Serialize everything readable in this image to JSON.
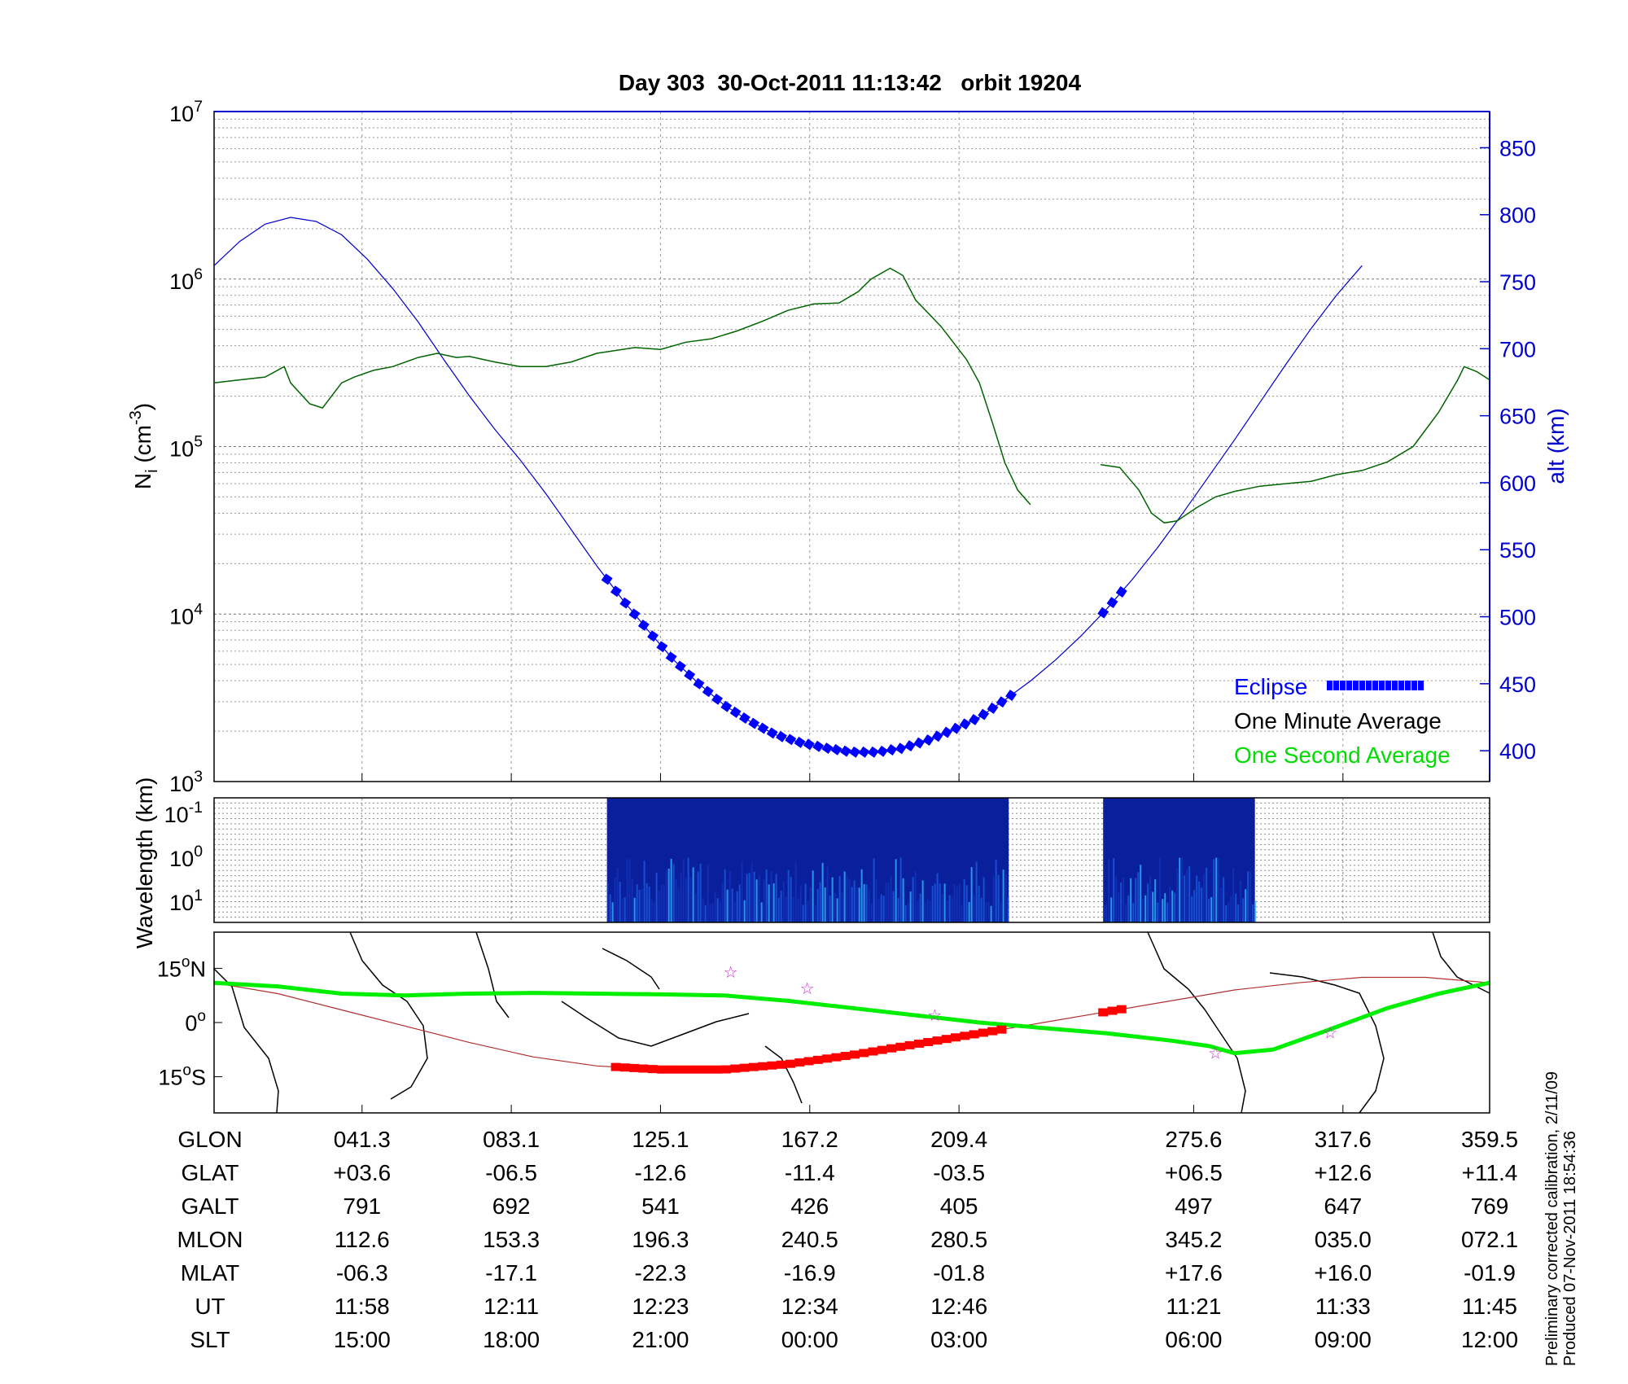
{
  "title": "Day 303  30-Oct-2011 11:13:42   orbit 19204",
  "notes": [
    "Preliminary corrected calibration, 2/11/09",
    "Produced 07-Nov-2011 18:54:36"
  ],
  "colors": {
    "altitude": "#0000cc",
    "density": "#006400",
    "eclipse": "#0000ff",
    "track": "#00ee00",
    "orbit": "#b03030",
    "eclipse_track": "#ff0000",
    "star": "#cc33cc",
    "spectrogram": "#0a1f9c"
  },
  "chart_data": [
    {
      "type": "line",
      "panel": "density",
      "ylabel": "N_i (cm^-3)",
      "ylabel_parts": {
        "base": "N",
        "sub": "i",
        "unit": " (cm",
        "sup": "-3",
        "close": ")"
      },
      "yscale": "log",
      "ylim": [
        1000,
        10000000
      ],
      "yticks": [
        {
          "base": "10",
          "exp": "3"
        },
        {
          "base": "10",
          "exp": "4"
        },
        {
          "base": "10",
          "exp": "5"
        },
        {
          "base": "10",
          "exp": "6"
        },
        {
          "base": "10",
          "exp": "7"
        }
      ],
      "y2label": "alt (km)",
      "y2lim": [
        377,
        877
      ],
      "y2ticks": [
        "400",
        "450",
        "500",
        "550",
        "600",
        "650",
        "700",
        "750",
        "800",
        "850"
      ],
      "xlim": [
        0,
        100
      ],
      "grid": true,
      "legend_position": "bottom-right",
      "legend": [
        "Eclipse",
        "One Minute Average",
        "One Second Average"
      ],
      "series": [
        {
          "name": "One Minute Average",
          "role": "density",
          "color": "#006400",
          "segments": [
            [
              [
                0,
                240000
              ],
              [
                2,
                250000
              ],
              [
                4,
                260000
              ],
              [
                5.5,
                300000
              ],
              [
                6,
                240000
              ],
              [
                7.5,
                180000
              ],
              [
                8.5,
                170000
              ],
              [
                10,
                240000
              ],
              [
                11,
                260000
              ],
              [
                12.5,
                285000
              ],
              [
                14,
                300000
              ],
              [
                16,
                340000
              ],
              [
                17.5,
                360000
              ],
              [
                19,
                340000
              ],
              [
                20,
                345000
              ],
              [
                22,
                320000
              ],
              [
                24,
                300000
              ],
              [
                26,
                300000
              ],
              [
                28,
                320000
              ],
              [
                30,
                360000
              ],
              [
                33,
                390000
              ],
              [
                35,
                380000
              ],
              [
                37,
                420000
              ],
              [
                39,
                440000
              ],
              [
                41,
                490000
              ],
              [
                43,
                560000
              ],
              [
                45,
                650000
              ],
              [
                47,
                710000
              ],
              [
                49,
                720000
              ],
              [
                50.5,
                840000
              ],
              [
                51.5,
                1000000
              ],
              [
                53,
                1160000
              ],
              [
                54,
                1050000
              ],
              [
                55,
                750000
              ],
              [
                57,
                520000
              ],
              [
                59,
                330000
              ],
              [
                60,
                240000
              ],
              [
                61,
                140000
              ],
              [
                62,
                80000
              ],
              [
                63,
                55000
              ],
              [
                64,
                45000
              ]
            ],
            [
              [
                69.5,
                78000
              ],
              [
                71,
                75000
              ],
              [
                72.5,
                55000
              ],
              [
                73.5,
                40000
              ],
              [
                74.5,
                35000
              ],
              [
                75.5,
                36000
              ],
              [
                77,
                43000
              ],
              [
                78.5,
                50000
              ],
              [
                80,
                54000
              ],
              [
                82,
                58000
              ],
              [
                84,
                60000
              ],
              [
                86,
                62000
              ],
              [
                88,
                68000
              ],
              [
                90,
                72000
              ],
              [
                92,
                81000
              ],
              [
                94,
                100000
              ],
              [
                96,
                160000
              ],
              [
                97.5,
                250000
              ],
              [
                98,
                300000
              ],
              [
                99,
                280000
              ],
              [
                100,
                250000
              ]
            ]
          ]
        },
        {
          "name": "",
          "role": "altitude",
          "axis": "right",
          "color": "#0000cc",
          "points": [
            [
              0,
              762
            ],
            [
              2,
              780
            ],
            [
              4,
              793
            ],
            [
              6,
              798
            ],
            [
              8,
              795
            ],
            [
              10,
              785
            ],
            [
              12,
              767
            ],
            [
              14,
              745
            ],
            [
              16,
              720
            ],
            [
              18,
              692
            ],
            [
              20,
              665
            ],
            [
              22,
              640
            ],
            [
              24,
              617
            ],
            [
              26,
              592
            ],
            [
              28,
              565
            ],
            [
              30,
              538
            ],
            [
              32,
              513
            ],
            [
              34,
              490
            ],
            [
              36,
              468
            ],
            [
              38,
              450
            ],
            [
              40,
              434
            ],
            [
              42,
              422
            ],
            [
              44,
              412
            ],
            [
              46,
              406
            ],
            [
              48,
              402
            ],
            [
              50,
              399
            ],
            [
              52,
              399
            ],
            [
              54,
              402
            ],
            [
              56,
              408
            ],
            [
              58,
              416
            ],
            [
              60,
              425
            ],
            [
              62,
              438
            ],
            [
              64,
              452
            ],
            [
              66,
              468
            ],
            [
              68,
              486
            ],
            [
              70,
              506
            ],
            [
              72,
              528
            ],
            [
              74,
              552
            ],
            [
              76,
              578
            ],
            [
              78,
              605
            ],
            [
              80,
              632
            ],
            [
              82,
              660
            ],
            [
              84,
              688
            ],
            [
              86,
              715
            ],
            [
              88,
              740
            ],
            [
              90,
              762
            ]
          ]
        },
        {
          "name": "Eclipse",
          "role": "eclipse",
          "axis": "right",
          "color": "#0000ff",
          "segments": [
            [
              30.8,
              63.1
            ],
            [
              69.7,
              71.6
            ]
          ]
        }
      ]
    },
    {
      "type": "heatmap",
      "panel": "spectrogram",
      "ylabel": "Wavelength (km)",
      "yticks": [
        {
          "base": "10",
          "exp": "-1"
        },
        {
          "base": "10",
          "exp": "0"
        },
        {
          "base": "10",
          "exp": "1"
        }
      ],
      "xlim": [
        0,
        100
      ],
      "blocks": [
        [
          30.8,
          62.3
        ],
        [
          69.7,
          81.6
        ]
      ]
    },
    {
      "type": "line",
      "panel": "map",
      "yticks": [
        {
          "v": 15,
          "txt": "15",
          "deg": "o",
          "hem": "N"
        },
        {
          "v": 0,
          "txt": "0",
          "deg": "o",
          "hem": ""
        },
        {
          "v": -15,
          "txt": "15",
          "deg": "o",
          "hem": "S"
        }
      ],
      "ylim": [
        -25,
        25
      ],
      "xlim": [
        0,
        100
      ],
      "series": [
        {
          "name": "",
          "role": "magnetic_equator",
          "color": "#00ee00",
          "points": [
            [
              0,
              11
            ],
            [
              5,
              10
            ],
            [
              10,
              8
            ],
            [
              15,
              7.5
            ],
            [
              20,
              8
            ],
            [
              25,
              8.2
            ],
            [
              30,
              8
            ],
            [
              35,
              7.8
            ],
            [
              40,
              7.5
            ],
            [
              45,
              6
            ],
            [
              50,
              4
            ],
            [
              55,
              2
            ],
            [
              60,
              0
            ],
            [
              65,
              -1.5
            ],
            [
              70,
              -3
            ],
            [
              75,
              -5
            ],
            [
              78,
              -6.5
            ],
            [
              80,
              -8.5
            ],
            [
              83,
              -7.5
            ],
            [
              87,
              -2.5
            ],
            [
              92,
              4
            ],
            [
              96,
              8
            ],
            [
              100,
              11
            ]
          ]
        },
        {
          "name": "",
          "role": "orbit_track",
          "color": "#b03030",
          "points": [
            [
              0,
              11
            ],
            [
              5,
              8
            ],
            [
              10,
              3.5
            ],
            [
              15,
              -1
            ],
            [
              20,
              -5.5
            ],
            [
              25,
              -9.5
            ],
            [
              30,
              -12
            ],
            [
              35,
              -13
            ],
            [
              40,
              -13
            ],
            [
              45,
              -11.5
            ],
            [
              50,
              -9
            ],
            [
              55,
              -6
            ],
            [
              60,
              -3
            ],
            [
              65,
              0
            ],
            [
              70,
              3
            ],
            [
              75,
              6
            ],
            [
              80,
              9
            ],
            [
              85,
              11
            ],
            [
              90,
              12.5
            ],
            [
              95,
              12.5
            ],
            [
              100,
              11
            ]
          ]
        },
        {
          "name": "",
          "role": "eclipse_track",
          "color": "#ff0000",
          "segments": [
            [
              31.5,
              62.3
            ],
            [
              69.7,
              71.6
            ]
          ]
        }
      ],
      "stars": [
        [
          40.5,
          14
        ],
        [
          46.5,
          9.5
        ],
        [
          56.5,
          2
        ],
        [
          78.5,
          -8.5
        ],
        [
          87.5,
          -2.8
        ]
      ]
    },
    {
      "type": "table",
      "rows": [
        "GLON",
        "GLAT",
        "GALT",
        "MLON",
        "MLAT",
        "UT",
        "SLT"
      ],
      "columns": [
        {
          "x": 11.6,
          "values": [
            "041.3",
            "+03.6",
            "791",
            "112.6",
            "-06.3",
            "11:58",
            "15:00"
          ]
        },
        {
          "x": 23.3,
          "values": [
            "083.1",
            "-06.5",
            "692",
            "153.3",
            "-17.1",
            "12:11",
            "18:00"
          ]
        },
        {
          "x": 35.0,
          "values": [
            "125.1",
            "-12.6",
            "541",
            "196.3",
            "-22.3",
            "12:23",
            "21:00"
          ]
        },
        {
          "x": 46.7,
          "values": [
            "167.2",
            "-11.4",
            "426",
            "240.5",
            "-16.9",
            "12:34",
            "00:00"
          ]
        },
        {
          "x": 58.4,
          "values": [
            "209.4",
            "-03.5",
            "405",
            "280.5",
            "-01.8",
            "12:46",
            "03:00"
          ]
        },
        {
          "x": 76.8,
          "values": [
            "275.6",
            "+06.5",
            "497",
            "345.2",
            "+17.6",
            "11:21",
            "06:00"
          ]
        },
        {
          "x": 88.5,
          "values": [
            "317.6",
            "+12.6",
            "647",
            "035.0",
            "+16.0",
            "11:33",
            "09:00"
          ]
        },
        {
          "x": 100,
          "values": [
            "359.5",
            "+11.4",
            "769",
            "072.1",
            "-01.9",
            "11:45",
            "12:00"
          ]
        }
      ]
    }
  ]
}
